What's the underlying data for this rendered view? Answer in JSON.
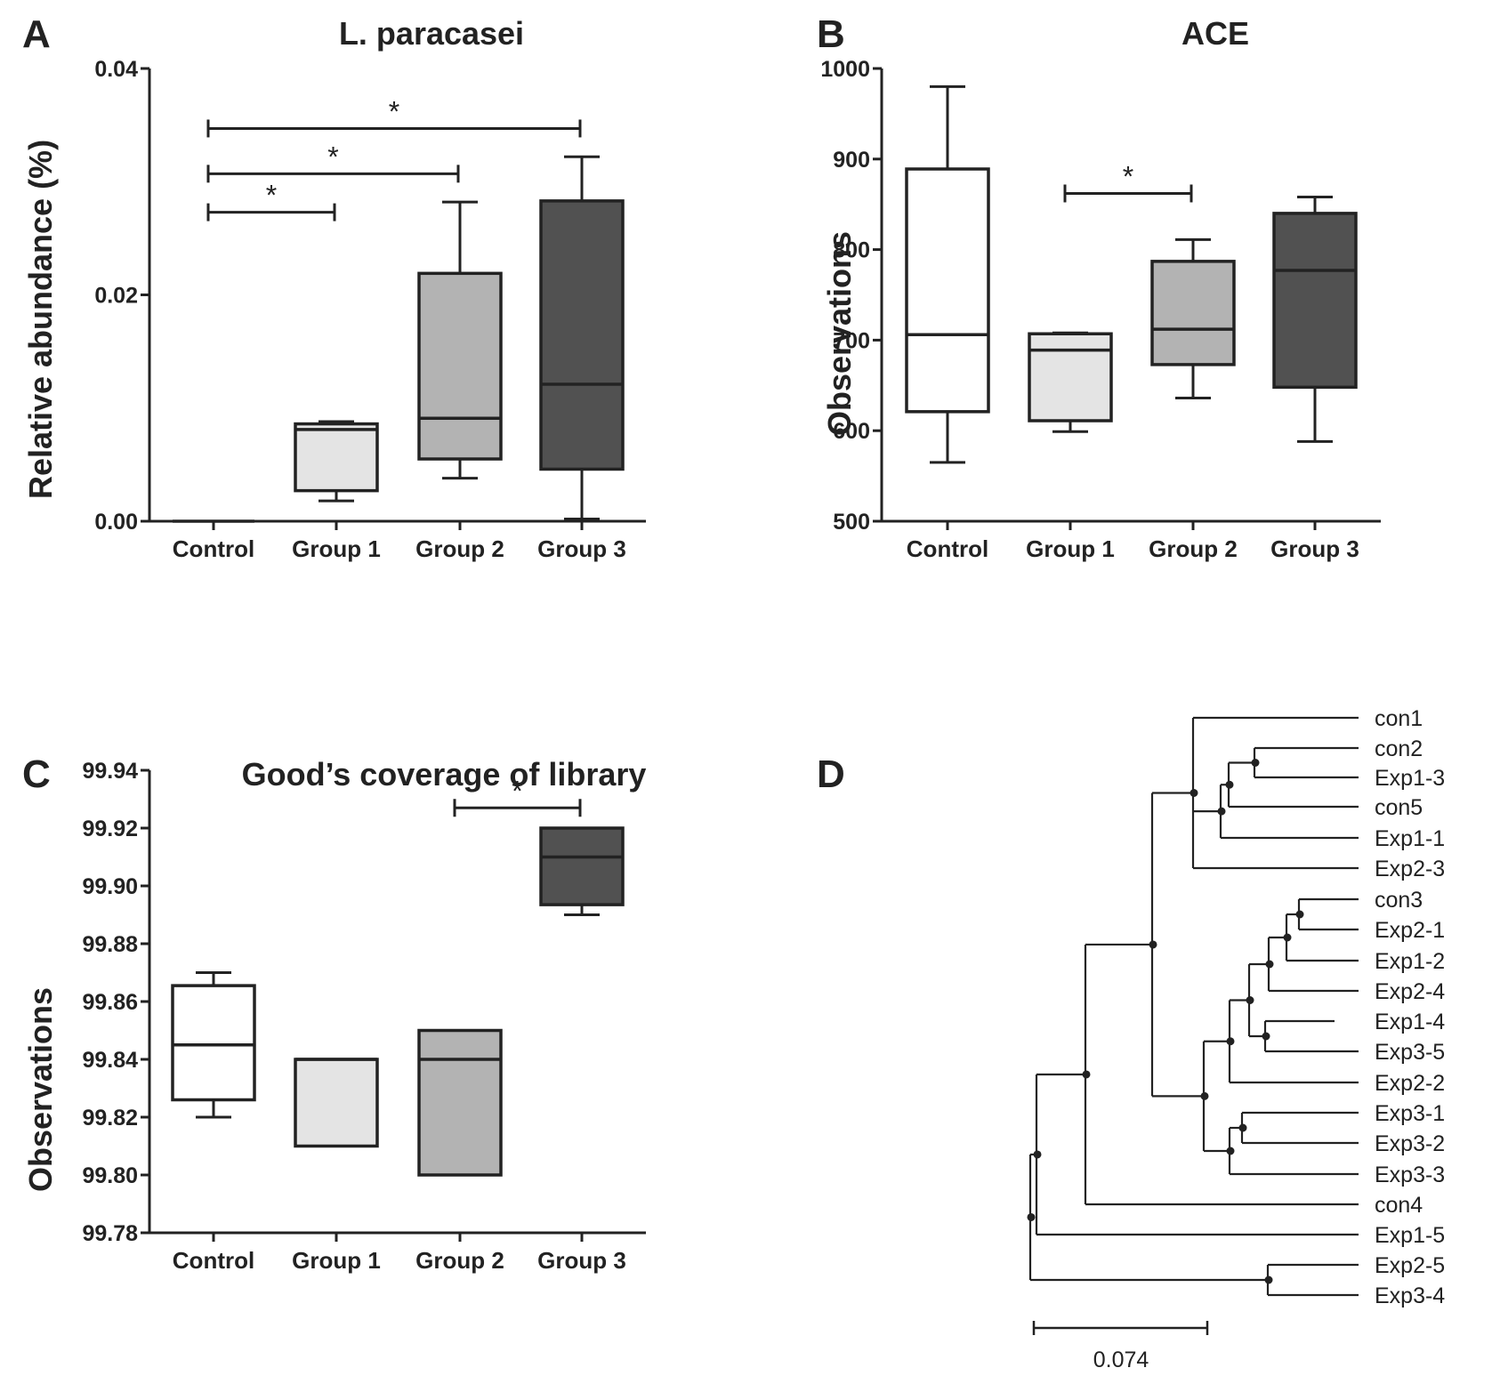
{
  "chart_data": [
    {
      "type": "box",
      "panel": "A",
      "title": "L. paracasei",
      "ylabel": "Relative abundance (%)",
      "xlabel": "",
      "ylim": [
        0,
        0.04
      ],
      "yticks": [
        0.0,
        0.02,
        0.04
      ],
      "ytick_labels": [
        "0.00",
        "0.02",
        "0.04"
      ],
      "categories": [
        "Control",
        "Group 1",
        "Group 2",
        "Group 3"
      ],
      "fills": [
        "#ffffff",
        "#e4e4e4",
        "#b3b3b3",
        "#515151"
      ],
      "boxes": [
        {
          "min": 0.0,
          "q1": 0.0,
          "median": 0.0,
          "q3": 0.0,
          "max": 0.0
        },
        {
          "min": 0.0018,
          "q1": 0.0027,
          "median": 0.0081,
          "q3": 0.0086,
          "max": 0.0088
        },
        {
          "min": 0.0038,
          "q1": 0.0055,
          "median": 0.0091,
          "q3": 0.0219,
          "max": 0.0282
        },
        {
          "min": 0.0002,
          "q1": 0.0046,
          "median": 0.0121,
          "q3": 0.0283,
          "max": 0.0322
        }
      ],
      "significance": [
        {
          "from": 0,
          "to": 1,
          "value": 0.0273,
          "label": "*"
        },
        {
          "from": 0,
          "to": 2,
          "value": 0.0307,
          "label": "*"
        },
        {
          "from": 0,
          "to": 3,
          "value": 0.0347,
          "label": "*"
        }
      ]
    },
    {
      "type": "box",
      "panel": "B",
      "title": "ACE",
      "ylabel": "Observations",
      "xlabel": "",
      "ylim": [
        500,
        1000
      ],
      "yticks": [
        500,
        600,
        700,
        800,
        900,
        1000
      ],
      "ytick_labels": [
        "500",
        "600",
        "700",
        "800",
        "900",
        "1000"
      ],
      "categories": [
        "Control",
        "Group 1",
        "Group 2",
        "Group 3"
      ],
      "fills": [
        "#ffffff",
        "#e4e4e4",
        "#b3b3b3",
        "#515151"
      ],
      "boxes": [
        {
          "min": 565,
          "q1": 621,
          "median": 706,
          "q3": 889,
          "max": 980
        },
        {
          "min": 599,
          "q1": 611,
          "median": 689,
          "q3": 707,
          "max": 708
        },
        {
          "min": 636,
          "q1": 673,
          "median": 712,
          "q3": 787,
          "max": 811
        },
        {
          "min": 588,
          "q1": 648,
          "median": 777,
          "q3": 840,
          "max": 858
        }
      ],
      "significance": [
        {
          "from": 1,
          "to": 2,
          "value": 862,
          "label": "*"
        }
      ]
    },
    {
      "type": "box",
      "panel": "C",
      "title": "Good’s coverage of library",
      "ylabel": "Observations",
      "xlabel": "",
      "ylim": [
        99.78,
        99.94
      ],
      "yticks": [
        99.78,
        99.8,
        99.82,
        99.84,
        99.86,
        99.88,
        99.9,
        99.92,
        99.94
      ],
      "ytick_labels": [
        "99.78",
        "99.80",
        "99.82",
        "99.84",
        "99.86",
        "99.88",
        "99.90",
        "99.92",
        "99.94"
      ],
      "categories": [
        "Control",
        "Group 1",
        "Group 2",
        "Group 3"
      ],
      "fills": [
        "#ffffff",
        "#e4e4e4",
        "#b3b3b3",
        "#515151"
      ],
      "boxes": [
        {
          "min": 99.82,
          "q1": 99.826,
          "median": 99.845,
          "q3": 99.8655,
          "max": 99.87
        },
        {
          "min": 99.81,
          "q1": 99.81,
          "median": 99.84,
          "q3": 99.84,
          "max": 99.84
        },
        {
          "min": 99.8,
          "q1": 99.8,
          "median": 99.84,
          "q3": 99.85,
          "max": 99.85
        },
        {
          "min": 99.89,
          "q1": 99.8935,
          "median": 99.91,
          "q3": 99.92,
          "max": 99.92
        }
      ],
      "significance": [
        {
          "from": 2,
          "to": 3,
          "value": 99.927,
          "label": "*"
        }
      ]
    },
    {
      "type": "tree",
      "panel": "D",
      "title": "",
      "leaves": [
        "con1",
        "con2",
        "Exp1-3",
        "con5",
        "Exp1-1",
        "Exp2-3",
        "con3",
        "Exp2-1",
        "Exp1-2",
        "Exp2-4",
        "Exp1-4",
        "Exp3-5",
        "Exp2-2",
        "Exp3-1",
        "Exp3-2",
        "Exp3-3",
        "con4",
        "Exp1-5",
        "Exp2-5",
        "Exp3-4"
      ],
      "scale_bar": "0.074"
    }
  ]
}
